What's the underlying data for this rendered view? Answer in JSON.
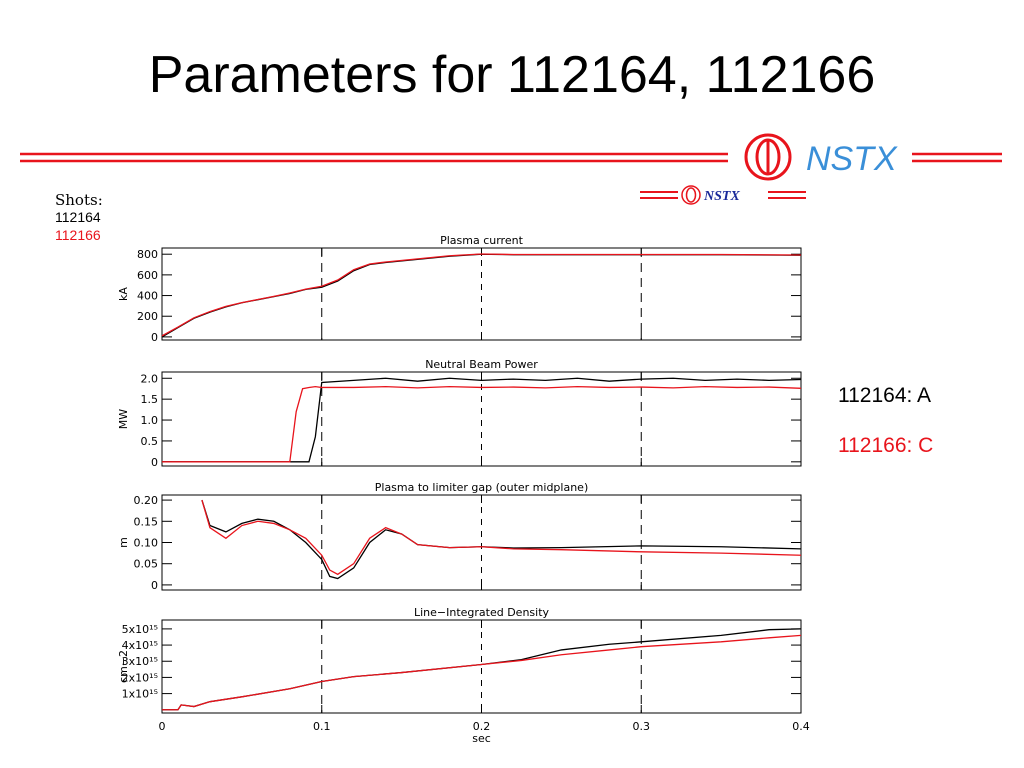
{
  "title": "Parameters for 112164, 112166",
  "logo_text": "NSTX",
  "legend_title": "Shots:",
  "annotations": [
    {
      "text": "112164: A",
      "color": "#000000"
    },
    {
      "text": "112166: C",
      "color": "#e8141c"
    }
  ],
  "chart_data": [
    {
      "type": "line",
      "title": "Plasma current",
      "ylabel": "kA",
      "x": [
        0,
        0.01,
        0.02,
        0.03,
        0.04,
        0.05,
        0.06,
        0.07,
        0.08,
        0.09,
        0.1,
        0.11,
        0.12,
        0.13,
        0.14,
        0.16,
        0.18,
        0.2,
        0.22,
        0.25,
        0.3,
        0.35,
        0.4
      ],
      "series": [
        {
          "name": "112164",
          "color": "#000000",
          "values": [
            0,
            90,
            180,
            240,
            290,
            330,
            360,
            390,
            420,
            460,
            480,
            540,
            640,
            700,
            720,
            750,
            780,
            800,
            795,
            795,
            795,
            795,
            790
          ]
        },
        {
          "name": "112166",
          "color": "#e8141c",
          "values": [
            10,
            95,
            185,
            245,
            295,
            332,
            362,
            392,
            425,
            462,
            490,
            550,
            650,
            705,
            725,
            755,
            785,
            802,
            797,
            797,
            797,
            797,
            792
          ]
        }
      ],
      "xlim": [
        0,
        0.4
      ],
      "xticks": [
        0,
        0.1,
        0.2,
        0.3,
        0.4
      ],
      "ylim": [
        -30,
        860
      ],
      "yticks": [
        0,
        200,
        400,
        600,
        800
      ],
      "grid": true
    },
    {
      "type": "line",
      "title": "Neutral Beam Power",
      "ylabel": "MW",
      "x": [
        0,
        0.08,
        0.084,
        0.088,
        0.092,
        0.096,
        0.1,
        0.12,
        0.14,
        0.16,
        0.18,
        0.2,
        0.22,
        0.24,
        0.26,
        0.28,
        0.3,
        0.32,
        0.34,
        0.36,
        0.38,
        0.4
      ],
      "series": [
        {
          "color": "#000000",
          "values": [
            0,
            0,
            0,
            0,
            0,
            0.6,
            1.9,
            1.95,
            2.0,
            1.93,
            2.0,
            1.95,
            1.98,
            1.95,
            2.0,
            1.93,
            1.98,
            2.0,
            1.95,
            1.98,
            1.95,
            1.97
          ]
        },
        {
          "color": "#e8141c",
          "values": [
            0,
            0,
            1.2,
            1.75,
            1.78,
            1.8,
            1.78,
            1.78,
            1.8,
            1.77,
            1.8,
            1.78,
            1.79,
            1.77,
            1.8,
            1.78,
            1.79,
            1.77,
            1.8,
            1.78,
            1.79,
            1.76
          ]
        }
      ],
      "xlim": [
        0,
        0.4
      ],
      "xticks": [
        0,
        0.1,
        0.2,
        0.3,
        0.4
      ],
      "ylim": [
        -0.1,
        2.15
      ],
      "yticks": [
        0,
        0.5,
        {
          "value": 1,
          "label": "1.0"
        },
        1.5,
        {
          "value": 2,
          "label": "2.0"
        }
      ],
      "grid": true
    },
    {
      "type": "line",
      "title": "Plasma to limiter gap (outer midplane)",
      "ylabel": "m",
      "x": [
        0.025,
        0.03,
        0.04,
        0.05,
        0.06,
        0.07,
        0.08,
        0.09,
        0.1,
        0.105,
        0.11,
        0.12,
        0.13,
        0.14,
        0.15,
        0.16,
        0.18,
        0.2,
        0.22,
        0.25,
        0.3,
        0.35,
        0.4
      ],
      "series": [
        {
          "color": "#000000",
          "values": [
            0.2,
            0.14,
            0.125,
            0.145,
            0.155,
            0.15,
            0.13,
            0.1,
            0.06,
            0.02,
            0.015,
            0.04,
            0.1,
            0.13,
            0.12,
            0.095,
            0.088,
            0.09,
            0.087,
            0.088,
            0.092,
            0.09,
            0.085
          ]
        },
        {
          "color": "#e8141c",
          "values": [
            0.2,
            0.135,
            0.11,
            0.14,
            0.15,
            0.145,
            0.13,
            0.11,
            0.07,
            0.035,
            0.025,
            0.05,
            0.11,
            0.135,
            0.12,
            0.095,
            0.088,
            0.09,
            0.085,
            0.083,
            0.078,
            0.075,
            0.07
          ]
        }
      ],
      "xlim": [
        0,
        0.4
      ],
      "xticks": [
        0,
        0.1,
        0.2,
        0.3,
        0.4
      ],
      "ylim": [
        -0.012,
        0.212
      ],
      "yticks": [
        0,
        0.05,
        {
          "value": 0.1,
          "label": "0.10"
        },
        0.15,
        {
          "value": 0.2,
          "label": "0.20"
        }
      ],
      "grid": true
    },
    {
      "type": "line",
      "title": "Line−Integrated Density",
      "ylabel": "cm−2",
      "xlabel": "sec",
      "x": [
        0,
        0.01,
        0.012,
        0.02,
        0.03,
        0.05,
        0.08,
        0.1,
        0.12,
        0.15,
        0.2,
        0.225,
        0.25,
        0.28,
        0.3,
        0.35,
        0.38,
        0.4
      ],
      "series": [
        {
          "color": "#000000",
          "values": [
            0,
            0,
            300000000000000.0,
            200000000000000.0,
            500000000000000.0,
            800000000000000.0,
            1300000000000000.0,
            1750000000000000.0,
            2050000000000000.0,
            2300000000000000.0,
            2800000000000000.0,
            3100000000000000.0,
            3700000000000000.0,
            4050000000000000.0,
            4200000000000000.0,
            4600000000000000.0,
            4950000000000000.0,
            5000000000000000.0
          ]
        },
        {
          "color": "#e8141c",
          "values": [
            0,
            0,
            300000000000000.0,
            200000000000000.0,
            500000000000000.0,
            800000000000000.0,
            1300000000000000.0,
            1750000000000000.0,
            2050000000000000.0,
            2300000000000000.0,
            2800000000000000.0,
            3050000000000000.0,
            3400000000000000.0,
            3700000000000000.0,
            3900000000000000.0,
            4200000000000000.0,
            4450000000000000.0,
            4600000000000000.0
          ]
        }
      ],
      "xlim": [
        0,
        0.4
      ],
      "xticks": [
        0,
        0.1,
        0.2,
        0.3,
        0.4
      ],
      "ylim": [
        -200000000000000.0,
        5550000000000000.0
      ],
      "yticks": [
        {
          "value": 1000000000000000.0,
          "label": "1x10¹⁵"
        },
        {
          "value": 2000000000000000.0,
          "label": "2x10¹⁵"
        },
        {
          "value": 3000000000000000.0,
          "label": "3x10¹⁵"
        },
        {
          "value": 4000000000000000.0,
          "label": "4x10¹⁵"
        },
        {
          "value": 5000000000000000.0,
          "label": "5x10¹⁵"
        }
      ],
      "grid": true
    }
  ]
}
